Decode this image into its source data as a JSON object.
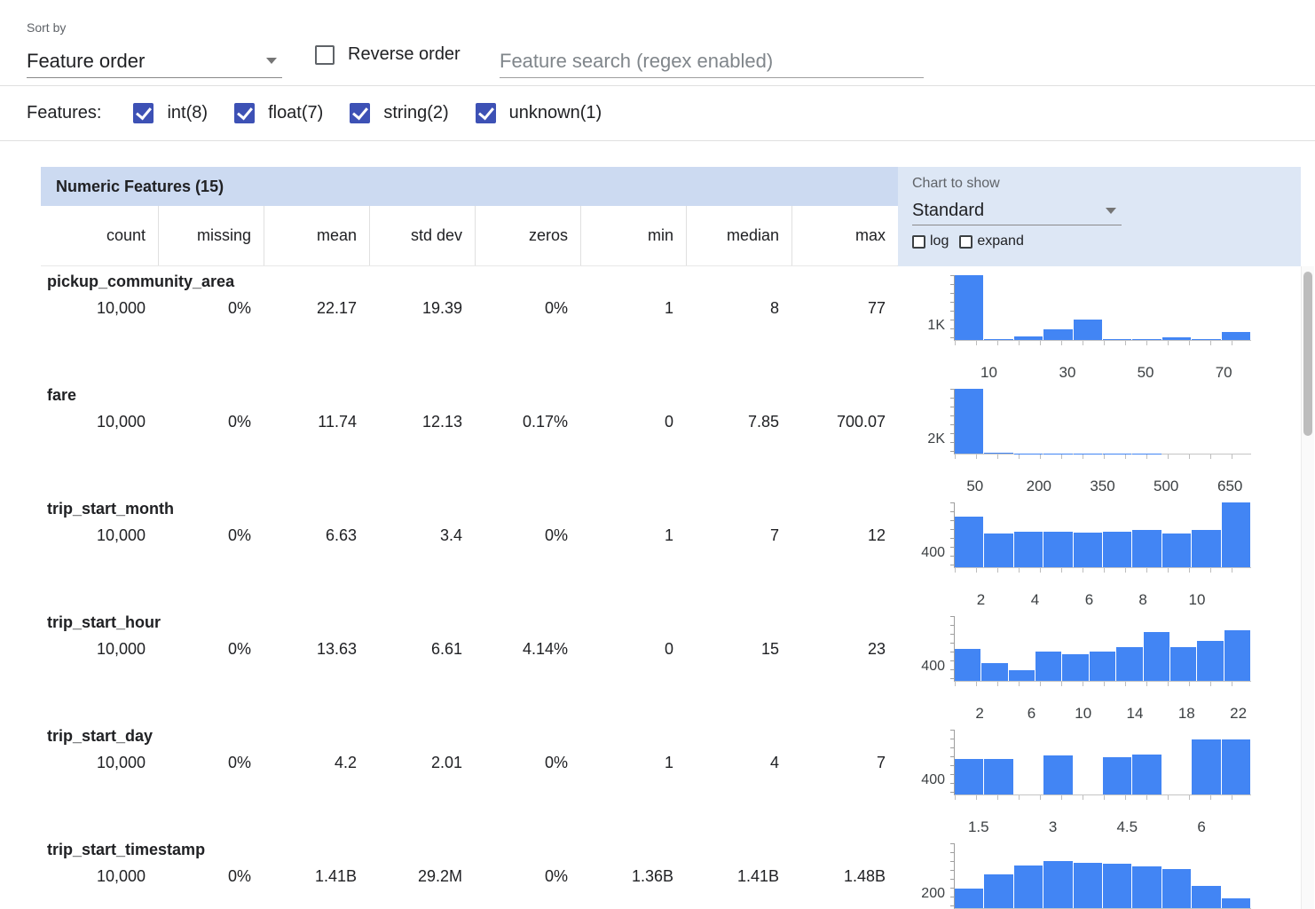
{
  "toolbar": {
    "sort_by_label": "Sort by",
    "sort_by_value": "Feature order",
    "reverse_order_label": "Reverse order",
    "reverse_order_checked": false,
    "search_placeholder": "Feature search (regex enabled)"
  },
  "features_filter": {
    "label": "Features:",
    "options": [
      {
        "label": "int(8)",
        "checked": true
      },
      {
        "label": "float(7)",
        "checked": true
      },
      {
        "label": "string(2)",
        "checked": true
      },
      {
        "label": "unknown(1)",
        "checked": true
      }
    ]
  },
  "table": {
    "title": "Numeric Features (15)",
    "columns": [
      "count",
      "missing",
      "mean",
      "std dev",
      "zeros",
      "min",
      "median",
      "max"
    ],
    "chart_controls": {
      "label": "Chart to show",
      "selected": "Standard",
      "log_label": "log",
      "log_checked": false,
      "expand_label": "expand",
      "expand_checked": false
    }
  },
  "features": [
    {
      "name": "pickup_community_area",
      "stats": [
        "10,000",
        "0%",
        "22.17",
        "19.39",
        "0%",
        "1",
        "8",
        "77"
      ],
      "hist": {
        "type": "bar",
        "y_label": "1K",
        "bars": [
          1.0,
          0.02,
          0.05,
          0.17,
          0.32,
          0.015,
          0.01,
          0.04,
          0.01,
          0.12
        ],
        "ticks": [
          {
            "label": "10",
            "pos": 11.8
          },
          {
            "label": "30",
            "pos": 38.2
          },
          {
            "label": "50",
            "pos": 64.5
          },
          {
            "label": "70",
            "pos": 90.8
          }
        ]
      }
    },
    {
      "name": "fare",
      "stats": [
        "10,000",
        "0%",
        "11.74",
        "12.13",
        "0.17%",
        "0",
        "7.85",
        "700.07"
      ],
      "hist": {
        "type": "bar",
        "y_label": "2K",
        "bars": [
          1.0,
          0.012,
          0.006,
          0.004,
          0.003,
          0.002,
          0.002,
          0.001,
          0.001,
          0.001
        ],
        "ticks": [
          {
            "label": "50",
            "pos": 7.1
          },
          {
            "label": "200",
            "pos": 28.6
          },
          {
            "label": "350",
            "pos": 50
          },
          {
            "label": "500",
            "pos": 71.4
          },
          {
            "label": "650",
            "pos": 92.9
          }
        ]
      }
    },
    {
      "name": "trip_start_month",
      "stats": [
        "10,000",
        "0%",
        "6.63",
        "3.4",
        "0%",
        "1",
        "7",
        "12"
      ],
      "hist": {
        "type": "bar",
        "y_label": "400",
        "bars": [
          0.78,
          0.52,
          0.55,
          0.55,
          0.54,
          0.55,
          0.57,
          0.52,
          0.57,
          1.0
        ],
        "ticks": [
          {
            "label": "2",
            "pos": 9.1
          },
          {
            "label": "4",
            "pos": 27.3
          },
          {
            "label": "6",
            "pos": 45.5
          },
          {
            "label": "8",
            "pos": 63.6
          },
          {
            "label": "10",
            "pos": 81.8
          }
        ]
      }
    },
    {
      "name": "trip_start_hour",
      "stats": [
        "10,000",
        "0%",
        "13.63",
        "6.61",
        "4.14%",
        "0",
        "15",
        "23"
      ],
      "hist": {
        "type": "bar",
        "y_label": "400",
        "bars": [
          0.5,
          0.28,
          0.17,
          0.45,
          0.41,
          0.45,
          0.52,
          0.76,
          0.52,
          0.62,
          0.78
        ],
        "ticks": [
          {
            "label": "2",
            "pos": 8.7
          },
          {
            "label": "6",
            "pos": 26.1
          },
          {
            "label": "10",
            "pos": 43.5
          },
          {
            "label": "14",
            "pos": 60.9
          },
          {
            "label": "18",
            "pos": 78.3
          },
          {
            "label": "22",
            "pos": 95.7
          }
        ]
      }
    },
    {
      "name": "trip_start_day",
      "stats": [
        "10,000",
        "0%",
        "4.2",
        "2.01",
        "0%",
        "1",
        "4",
        "7"
      ],
      "hist": {
        "type": "bar",
        "y_label": "400",
        "bars": [
          0.55,
          0.55,
          0,
          0.6,
          0,
          0.58,
          0.62,
          0,
          0.85,
          0.85
        ],
        "ticks": [
          {
            "label": "1.5",
            "pos": 8.3
          },
          {
            "label": "3",
            "pos": 33.3
          },
          {
            "label": "4.5",
            "pos": 58.3
          },
          {
            "label": "6",
            "pos": 83.3
          }
        ]
      }
    },
    {
      "name": "trip_start_timestamp",
      "stats": [
        "10,000",
        "0%",
        "1.41B",
        "29.2M",
        "0%",
        "1.36B",
        "1.41B",
        "1.48B"
      ],
      "hist": {
        "type": "bar",
        "y_label": "200",
        "bars": [
          0.3,
          0.52,
          0.66,
          0.72,
          0.7,
          0.68,
          0.65,
          0.6,
          0.34,
          0.15
        ],
        "ticks": []
      }
    }
  ],
  "colors": {
    "accent": "#3d51b5",
    "histogram_bar": "#4285f4",
    "header_band": "#ccdaf1",
    "chart_panel": "#dde7f5"
  }
}
